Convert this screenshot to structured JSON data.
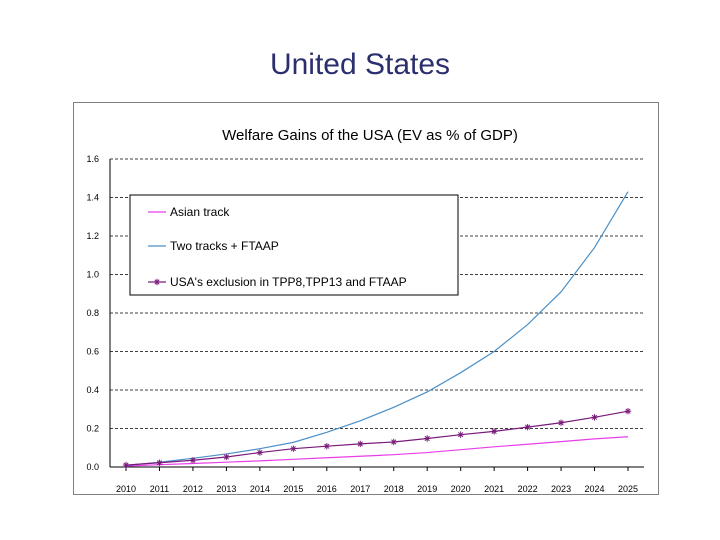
{
  "slide": {
    "title": "United States"
  },
  "chart_data": {
    "type": "line",
    "title": "Welfare Gains of the USA (EV as % of GDP)",
    "xlabel": "",
    "ylabel": "",
    "x": [
      2010,
      2011,
      2012,
      2013,
      2014,
      2015,
      2016,
      2017,
      2018,
      2019,
      2020,
      2021,
      2022,
      2023,
      2024,
      2025
    ],
    "x_tick_labels": [
      "2010",
      "2011",
      "2012",
      "2013",
      "2014",
      "2015",
      "2016",
      "2017",
      "2018",
      "2019",
      "2020",
      "2021",
      "2022",
      "2023",
      "2024",
      "2025"
    ],
    "y_tick_labels": [
      "0.0",
      "0.2",
      "0.4",
      "0.6",
      "0.8",
      "1.0",
      "1.2",
      "1.4",
      "1.6"
    ],
    "ylim": [
      0,
      1.6
    ],
    "grid": true,
    "legend_position": "upper-left",
    "series": [
      {
        "name": "Asian track",
        "color": "#e83ee8",
        "marker": "none",
        "values": [
          0.005,
          0.012,
          0.018,
          0.025,
          0.032,
          0.04,
          0.048,
          0.056,
          0.064,
          0.075,
          0.09,
          0.105,
          0.118,
          0.132,
          0.146,
          0.157
        ]
      },
      {
        "name": "Two tracks + FTAAP",
        "color": "#4a90c8",
        "marker": "none",
        "values": [
          0.008,
          0.025,
          0.045,
          0.068,
          0.095,
          0.128,
          0.18,
          0.24,
          0.31,
          0.39,
          0.49,
          0.6,
          0.74,
          0.91,
          1.14,
          1.43
        ]
      },
      {
        "name": "USA's exclusion in TPP8,TPP13 and FTAAP",
        "color": "#7a1a7a",
        "marker": "star",
        "values": [
          0.01,
          0.022,
          0.035,
          0.052,
          0.075,
          0.095,
          0.108,
          0.12,
          0.13,
          0.148,
          0.168,
          0.185,
          0.207,
          0.23,
          0.258,
          0.29
        ]
      }
    ]
  }
}
